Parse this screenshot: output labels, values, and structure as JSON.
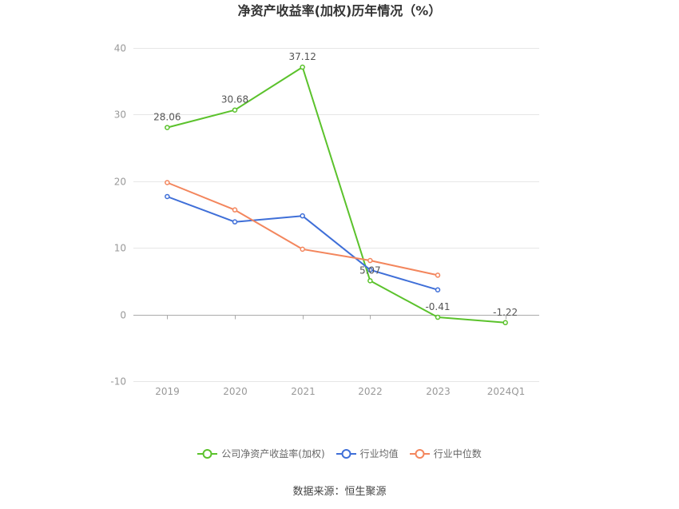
{
  "source": "数据来源：恒生聚源",
  "colors": {
    "grid": "#e6e6e6",
    "axis": "#aaaaaa",
    "tick_text": "#999999",
    "label_text": "#555555"
  },
  "chart_data": {
    "type": "line",
    "title": "净资产收益率(加权)历年情况（%）",
    "categories": [
      "2019",
      "2020",
      "2021",
      "2022",
      "2023",
      "2024Q1"
    ],
    "ylim": [
      -10,
      40
    ],
    "yticks": [
      -10,
      0,
      10,
      20,
      30,
      40
    ],
    "grid": true,
    "legend": "bottom-center",
    "series": [
      {
        "name": "公司净资产收益率(加权)",
        "values": [
          28.06,
          30.68,
          37.12,
          5.07,
          -0.41,
          -1.22
        ],
        "data_labels": true,
        "color": "#5bc22c"
      },
      {
        "name": "行业均值",
        "values": [
          17.7,
          13.9,
          14.8,
          6.7,
          3.7,
          null
        ],
        "data_labels": false,
        "color": "#3f6fd8"
      },
      {
        "name": "行业中位数",
        "values": [
          19.8,
          15.7,
          9.8,
          8.1,
          5.9,
          null
        ],
        "data_labels": false,
        "color": "#f3865d"
      }
    ]
  }
}
